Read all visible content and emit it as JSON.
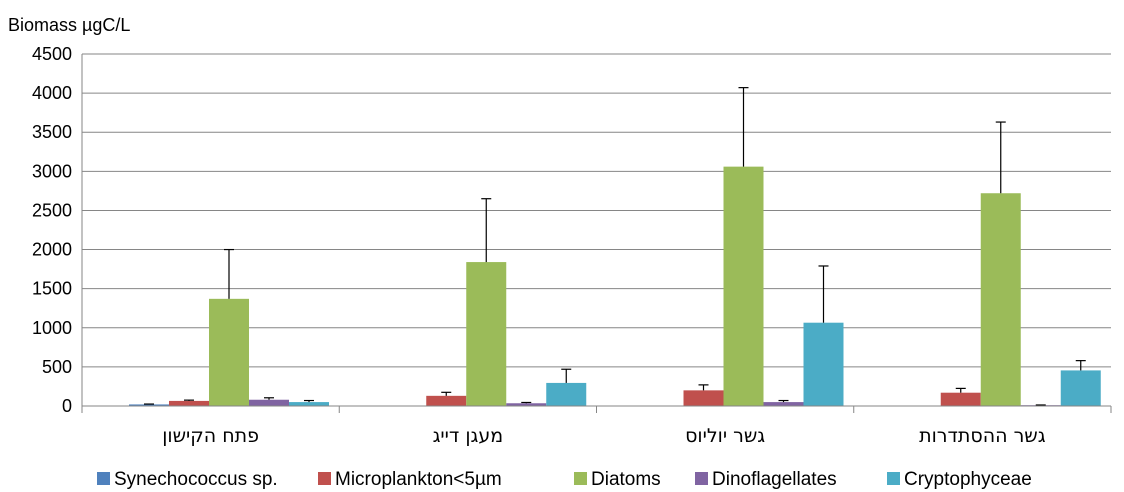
{
  "chart_data": {
    "type": "bar",
    "ylabel": "Biomass µgC/L",
    "ylim": [
      0,
      4500
    ],
    "yticks": [
      0,
      500,
      1000,
      1500,
      2000,
      2500,
      3000,
      3500,
      4000,
      4500
    ],
    "grid": true,
    "legend_position": "bottom",
    "categories": [
      "פתח הקישון",
      "מעגן דייג",
      "גשר יוליוס",
      "גשר ההסתדרות"
    ],
    "series": [
      {
        "name": "Synechococcus sp.",
        "color": "#4F81BD",
        "values": [
          20,
          0,
          0,
          0
        ],
        "errors": [
          5,
          0,
          0,
          0
        ]
      },
      {
        "name": "Microplankton<5µm",
        "color": "#C0504D",
        "values": [
          65,
          130,
          200,
          170
        ],
        "errors": [
          10,
          45,
          70,
          55
        ]
      },
      {
        "name": "Diatoms",
        "color": "#9BBB59",
        "values": [
          1370,
          1840,
          3060,
          2720
        ],
        "errors": [
          630,
          810,
          1010,
          910
        ]
      },
      {
        "name": "Dinoflagellates",
        "color": "#8064A2",
        "values": [
          80,
          35,
          50,
          10
        ],
        "errors": [
          25,
          10,
          20,
          3
        ]
      },
      {
        "name": "Cryptophyceae",
        "color": "#4BACC6",
        "values": [
          50,
          295,
          1065,
          455
        ],
        "errors": [
          20,
          175,
          725,
          125
        ]
      }
    ]
  }
}
